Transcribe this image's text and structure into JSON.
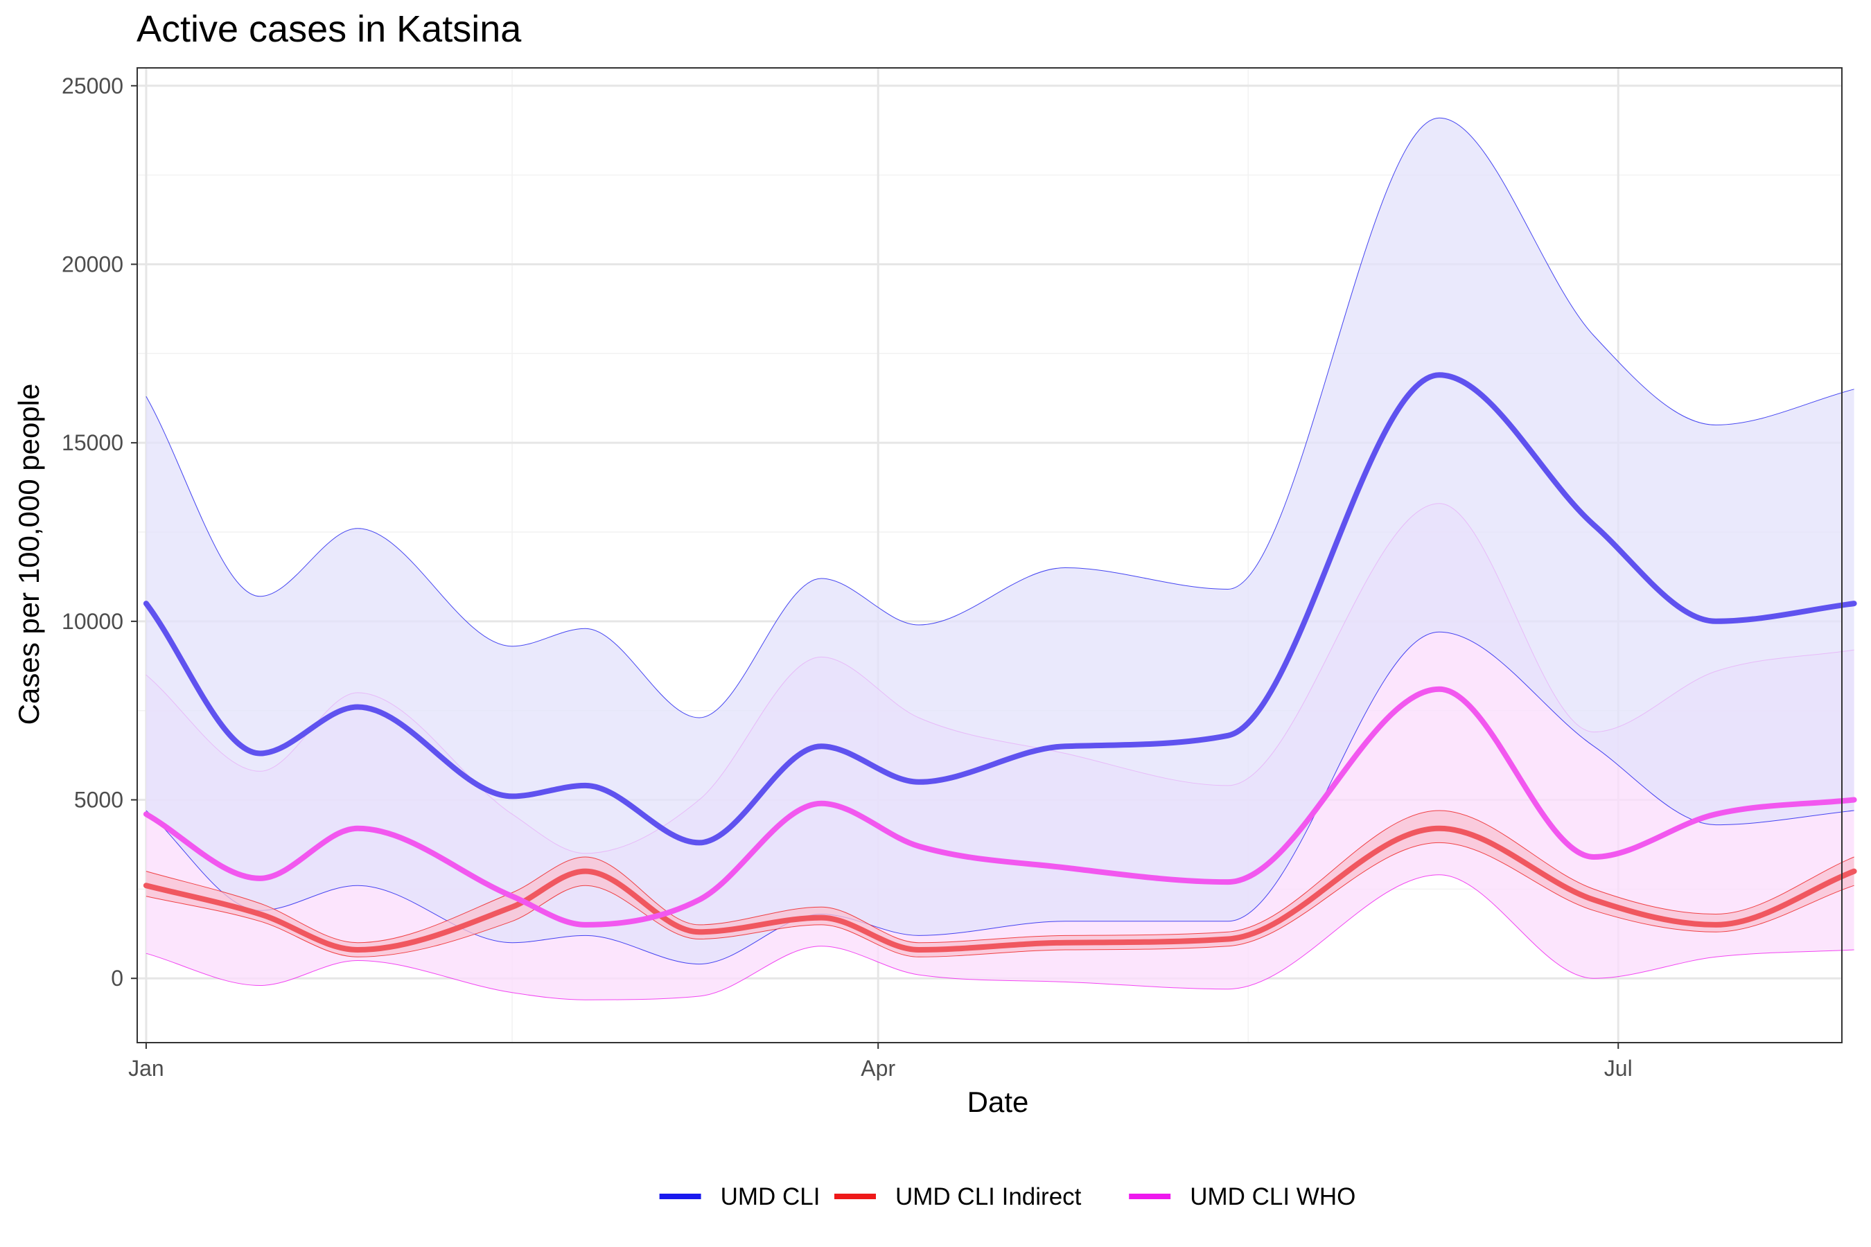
{
  "chart_data": {
    "type": "line",
    "title": "Active cases in Katsina",
    "xlabel": "Date",
    "ylabel": "Cases per 100,000 people",
    "x_start": "2021-01-01",
    "x_end": "2021-07-25",
    "xlim": [
      -1.1,
      208.5
    ],
    "ylim": [
      -1800,
      25500
    ],
    "x_ticks": [
      {
        "label": "Jan",
        "day": 0
      },
      {
        "label": "Apr",
        "day": 90
      },
      {
        "label": "Jul",
        "day": 181
      }
    ],
    "y_ticks": [
      0,
      5000,
      10000,
      15000,
      20000,
      25000
    ],
    "legend_position": "bottom",
    "days": [
      0,
      14,
      26,
      45,
      54,
      68,
      83,
      95,
      113,
      133,
      159,
      178,
      193,
      210
    ],
    "series": [
      {
        "name": "UMD CLI",
        "color": "#1919ee",
        "line_color": "#5f52ef",
        "band_fill": "#e3e2fb",
        "values": [
          10500,
          6300,
          7600,
          5100,
          5400,
          3800,
          6500,
          5500,
          6500,
          6800,
          16900,
          12700,
          10000,
          10500
        ],
        "lower": [
          4700,
          1900,
          2600,
          1000,
          1200,
          400,
          1800,
          1200,
          1600,
          1600,
          9700,
          6500,
          4300,
          4700
        ],
        "upper": [
          16300,
          10700,
          12600,
          9300,
          9800,
          7300,
          11200,
          9900,
          11500,
          10900,
          24100,
          18000,
          15500,
          16500
        ]
      },
      {
        "name": "UMD CLI Indirect",
        "color": "#ee1919",
        "line_color": "#f0575f",
        "band_fill": "#f9c2d2",
        "values": [
          2600,
          1800,
          800,
          2000,
          3000,
          1300,
          1700,
          800,
          1000,
          1100,
          4200,
          2200,
          1500,
          3000
        ],
        "lower": [
          2300,
          1600,
          600,
          1600,
          2600,
          1100,
          1500,
          600,
          800,
          900,
          3800,
          1900,
          1300,
          2600
        ],
        "upper": [
          3000,
          2100,
          1000,
          2400,
          3400,
          1500,
          2000,
          1000,
          1200,
          1300,
          4700,
          2500,
          1800,
          3400
        ]
      },
      {
        "name": "UMD CLI WHO",
        "color": "#ee19ee",
        "line_color": "#f257ef",
        "band_fill": "#fbdcfc",
        "values": [
          4600,
          2800,
          4200,
          2300,
          1500,
          2200,
          4900,
          3700,
          3100,
          2700,
          8100,
          3400,
          4600,
          5000
        ],
        "lower": [
          700,
          -200,
          500,
          -400,
          -600,
          -500,
          900,
          100,
          -100,
          -300,
          2900,
          0,
          600,
          800
        ],
        "upper": [
          8500,
          5800,
          8000,
          4600,
          3500,
          5000,
          9000,
          7300,
          6300,
          5400,
          13300,
          6900,
          8600,
          9200
        ]
      }
    ]
  }
}
